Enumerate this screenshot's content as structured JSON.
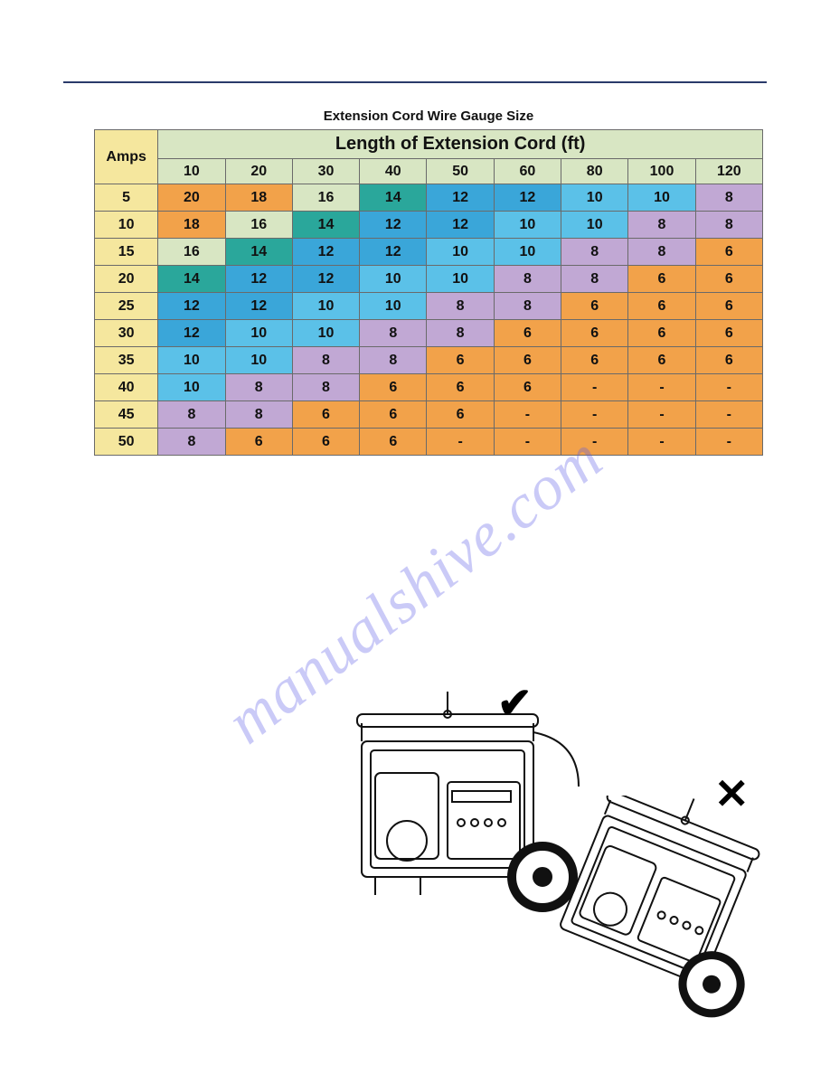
{
  "rule_color": "#2a3a6a",
  "watermark": "manualshive.com",
  "watermark_color": "rgba(90,90,230,0.32)",
  "table": {
    "title": "Extension Cord Wire Gauge Size",
    "span_header": "Length of Extension Cord (ft)",
    "amps_header": "Amps",
    "length_cols": [
      "10",
      "20",
      "30",
      "40",
      "50",
      "60",
      "80",
      "100",
      "120"
    ],
    "colors": {
      "header_green": "#d8e6c3",
      "amps_yellow": "#f5e79e",
      "orange": "#f2a24a",
      "pale_green": "#d8e6c3",
      "teal": "#2aa79b",
      "sky": "#5bc1e8",
      "med_blue": "#3aa6d9",
      "lavender": "#c1a8d4",
      "border": "#6a6a6a"
    },
    "rows": [
      {
        "amps": "5",
        "cells": [
          {
            "v": "20",
            "c": "orange"
          },
          {
            "v": "18",
            "c": "orange"
          },
          {
            "v": "16",
            "c": "pale_green"
          },
          {
            "v": "14",
            "c": "teal"
          },
          {
            "v": "12",
            "c": "med_blue"
          },
          {
            "v": "12",
            "c": "med_blue"
          },
          {
            "v": "10",
            "c": "sky"
          },
          {
            "v": "10",
            "c": "sky"
          },
          {
            "v": "8",
            "c": "lavender"
          }
        ]
      },
      {
        "amps": "10",
        "cells": [
          {
            "v": "18",
            "c": "orange"
          },
          {
            "v": "16",
            "c": "pale_green"
          },
          {
            "v": "14",
            "c": "teal"
          },
          {
            "v": "12",
            "c": "med_blue"
          },
          {
            "v": "12",
            "c": "med_blue"
          },
          {
            "v": "10",
            "c": "sky"
          },
          {
            "v": "10",
            "c": "sky"
          },
          {
            "v": "8",
            "c": "lavender"
          },
          {
            "v": "8",
            "c": "lavender"
          }
        ]
      },
      {
        "amps": "15",
        "cells": [
          {
            "v": "16",
            "c": "pale_green"
          },
          {
            "v": "14",
            "c": "teal"
          },
          {
            "v": "12",
            "c": "med_blue"
          },
          {
            "v": "12",
            "c": "med_blue"
          },
          {
            "v": "10",
            "c": "sky"
          },
          {
            "v": "10",
            "c": "sky"
          },
          {
            "v": "8",
            "c": "lavender"
          },
          {
            "v": "8",
            "c": "lavender"
          },
          {
            "v": "6",
            "c": "orange"
          }
        ]
      },
      {
        "amps": "20",
        "cells": [
          {
            "v": "14",
            "c": "teal"
          },
          {
            "v": "12",
            "c": "med_blue"
          },
          {
            "v": "12",
            "c": "med_blue"
          },
          {
            "v": "10",
            "c": "sky"
          },
          {
            "v": "10",
            "c": "sky"
          },
          {
            "v": "8",
            "c": "lavender"
          },
          {
            "v": "8",
            "c": "lavender"
          },
          {
            "v": "6",
            "c": "orange"
          },
          {
            "v": "6",
            "c": "orange"
          }
        ]
      },
      {
        "amps": "25",
        "cells": [
          {
            "v": "12",
            "c": "med_blue"
          },
          {
            "v": "12",
            "c": "med_blue"
          },
          {
            "v": "10",
            "c": "sky"
          },
          {
            "v": "10",
            "c": "sky"
          },
          {
            "v": "8",
            "c": "lavender"
          },
          {
            "v": "8",
            "c": "lavender"
          },
          {
            "v": "6",
            "c": "orange"
          },
          {
            "v": "6",
            "c": "orange"
          },
          {
            "v": "6",
            "c": "orange"
          }
        ]
      },
      {
        "amps": "30",
        "cells": [
          {
            "v": "12",
            "c": "med_blue"
          },
          {
            "v": "10",
            "c": "sky"
          },
          {
            "v": "10",
            "c": "sky"
          },
          {
            "v": "8",
            "c": "lavender"
          },
          {
            "v": "8",
            "c": "lavender"
          },
          {
            "v": "6",
            "c": "orange"
          },
          {
            "v": "6",
            "c": "orange"
          },
          {
            "v": "6",
            "c": "orange"
          },
          {
            "v": "6",
            "c": "orange"
          }
        ]
      },
      {
        "amps": "35",
        "cells": [
          {
            "v": "10",
            "c": "sky"
          },
          {
            "v": "10",
            "c": "sky"
          },
          {
            "v": "8",
            "c": "lavender"
          },
          {
            "v": "8",
            "c": "lavender"
          },
          {
            "v": "6",
            "c": "orange"
          },
          {
            "v": "6",
            "c": "orange"
          },
          {
            "v": "6",
            "c": "orange"
          },
          {
            "v": "6",
            "c": "orange"
          },
          {
            "v": "6",
            "c": "orange"
          }
        ]
      },
      {
        "amps": "40",
        "cells": [
          {
            "v": "10",
            "c": "sky"
          },
          {
            "v": "8",
            "c": "lavender"
          },
          {
            "v": "8",
            "c": "lavender"
          },
          {
            "v": "6",
            "c": "orange"
          },
          {
            "v": "6",
            "c": "orange"
          },
          {
            "v": "6",
            "c": "orange"
          },
          {
            "v": "-",
            "c": "orange"
          },
          {
            "v": "-",
            "c": "orange"
          },
          {
            "v": "-",
            "c": "orange"
          }
        ]
      },
      {
        "amps": "45",
        "cells": [
          {
            "v": "8",
            "c": "lavender"
          },
          {
            "v": "8",
            "c": "lavender"
          },
          {
            "v": "6",
            "c": "orange"
          },
          {
            "v": "6",
            "c": "orange"
          },
          {
            "v": "6",
            "c": "orange"
          },
          {
            "v": "-",
            "c": "orange"
          },
          {
            "v": "-",
            "c": "orange"
          },
          {
            "v": "-",
            "c": "orange"
          },
          {
            "v": "-",
            "c": "orange"
          }
        ]
      },
      {
        "amps": "50",
        "cells": [
          {
            "v": "8",
            "c": "lavender"
          },
          {
            "v": "6",
            "c": "orange"
          },
          {
            "v": "6",
            "c": "orange"
          },
          {
            "v": "6",
            "c": "orange"
          },
          {
            "v": "-",
            "c": "orange"
          },
          {
            "v": "-",
            "c": "orange"
          },
          {
            "v": "-",
            "c": "orange"
          },
          {
            "v": "-",
            "c": "orange"
          },
          {
            "v": "-",
            "c": "orange"
          }
        ]
      }
    ]
  },
  "icons": {
    "check_glyph": "✔",
    "x_glyph": "✕"
  }
}
